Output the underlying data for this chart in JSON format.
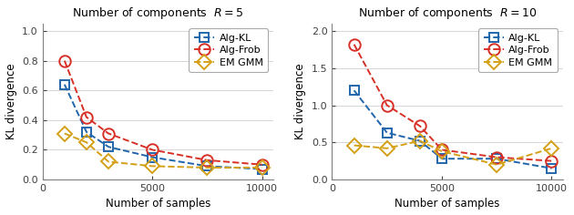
{
  "left": {
    "title": "Number of components  $R = 5$",
    "xlabel": "Number of samples",
    "ylabel": "KL divergence",
    "xlim": [
      0,
      10500
    ],
    "ylim": [
      0,
      1.05
    ],
    "yticks": [
      0,
      0.2,
      0.4,
      0.6,
      0.8,
      1.0
    ],
    "xticks": [
      0,
      5000,
      10000
    ],
    "alg_kl_x": [
      1000,
      2000,
      3000,
      5000,
      7500,
      10000
    ],
    "alg_kl_y": [
      0.64,
      0.32,
      0.22,
      0.15,
      0.09,
      0.07
    ],
    "alg_frob_x": [
      1000,
      2000,
      3000,
      5000,
      7500,
      10000
    ],
    "alg_frob_y": [
      0.8,
      0.42,
      0.31,
      0.2,
      0.13,
      0.1
    ],
    "em_gmm_x": [
      1000,
      2000,
      3000,
      5000,
      7500,
      10000
    ],
    "em_gmm_y": [
      0.31,
      0.25,
      0.12,
      0.09,
      0.08,
      0.08
    ]
  },
  "right": {
    "title": "Number of components  $R = 10$",
    "xlabel": "Number of samples",
    "ylabel": "KL divergence",
    "xlim": [
      0,
      10500
    ],
    "ylim": [
      0,
      2.1
    ],
    "yticks": [
      0,
      0.5,
      1.0,
      1.5,
      2.0
    ],
    "xticks": [
      0,
      5000,
      10000
    ],
    "alg_kl_x": [
      1000,
      2500,
      4000,
      5000,
      7500,
      10000
    ],
    "alg_kl_y": [
      1.2,
      0.63,
      0.52,
      0.28,
      0.28,
      0.15
    ],
    "alg_frob_x": [
      1000,
      2500,
      4000,
      5000,
      7500,
      10000
    ],
    "alg_frob_y": [
      1.82,
      1.0,
      0.72,
      0.4,
      0.3,
      0.25
    ],
    "em_gmm_x": [
      1000,
      2500,
      4000,
      5000,
      7500,
      10000
    ],
    "em_gmm_y": [
      0.46,
      0.42,
      0.52,
      0.38,
      0.2,
      0.42
    ]
  },
  "color_kl": "#2166ac",
  "color_frob": "#d73027",
  "color_em": "#d4a017",
  "marker_kl": "s",
  "marker_frob": "o",
  "marker_em": "D",
  "markersize": 7,
  "linewidth": 1.4,
  "legend_labels": [
    "Alg-KL",
    "Alg-Frob",
    "EM GMM"
  ],
  "title_fontsize": 9,
  "label_fontsize": 8.5,
  "tick_fontsize": 8,
  "legend_fontsize": 8
}
